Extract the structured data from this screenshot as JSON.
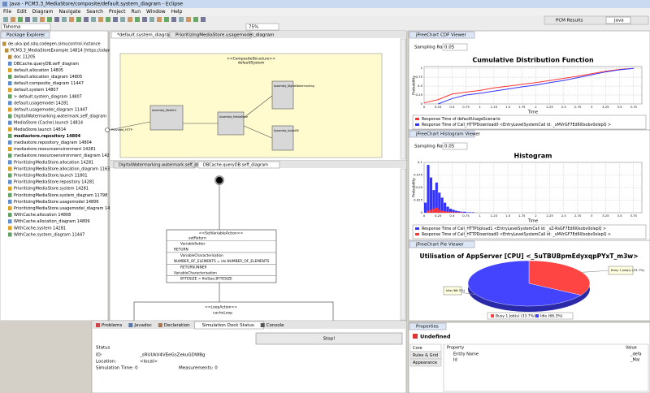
{
  "window": {
    "title": "Java - PCM3.3_MediaStore/composite/default.system_diagram - Eclipse"
  },
  "menu": [
    "File",
    "Edit",
    "Diagram",
    "Navigate",
    "Search",
    "Project",
    "Run",
    "Window",
    "Help"
  ],
  "toolbar": {
    "font": "Tahoma",
    "zoom": "75%",
    "perspectives": [
      "PCM Results",
      "Java"
    ]
  },
  "package_explorer": {
    "title": "Package Explorer",
    "items": [
      "de.uka.ipd.sdq.codegen.simucontrol.instance",
      "PCM3.3_MediaStoreExample 14814 [https://sdqweb",
      "doc 11205",
      "DBCache.queryDB.seff_diagram",
      "default.allocation 14805",
      "default.allocation_diagram 14805",
      "default.composite_diagram 11447",
      "default.system 14807",
      "> default.system_diagram 14807",
      "default.usagemodel 14281",
      "default.usagemodel_diagram 11447",
      "DigitalWatermarking.watermark.seff_diagram",
      "MediaStore (Cache).launch 14814",
      "MediaStore.launch 14814",
      "mediastore.repository 14804",
      "mediastore.repository_diagram 14804",
      "mediastore.resourceenvironment 14281",
      "mediastore.resourceenvironment_diagram 14281",
      "PrioritizingMediaStore.allocation 14281",
      "PrioritizingMediaStore.allocation_diagram 11635",
      "PrioritizingMediaStore.launch 11801",
      "PrioritizingMediaStore.repository 14281",
      "PrioritizingMediaStore.system 14281",
      "PrioritizingMediaStore.system_diagram 11798",
      "PrioritizingMediaStore.usagemodel 14806",
      "PrioritizingMediaStore.usagemodel_diagram 14806",
      "WithCache.allocation 14808",
      "WithCache.allocation_diagram 14809",
      "WithCache.system 14281",
      "WithCache.system_diagram 11447"
    ]
  },
  "editor_tabs": [
    "*default.system_diagram",
    "PrioritizingMediaStore.usagemodel_diagram"
  ],
  "system_diagram": {
    "stereotype": "<<CompositeStructure>>",
    "name": "defaultSystem",
    "provided": "Provided_HTTP",
    "components": [
      "Assembly_WebGUI",
      "Assembly_MediaStore",
      "Assembly_DigitalWatermarking",
      "Assembly_AudioDB"
    ]
  },
  "lower_editor_tabs": [
    "DigitalWatermarking.watermark.seff_diagram",
    "DBCache.queryDB.seff_diagram"
  ],
  "seff": {
    "stereotype": "<<SetVariableAction>>",
    "name": "setReturn",
    "rows": [
      "VariableSetter",
      "RETURN",
      "VariableCharacterisation",
      "NUMBER_OF_ELEMENTS = ids.NUMBER_OF_ELEMENTS",
      "RETURN.INNER",
      "VariableCharacterisation",
      "BYTESIZE = fileSize.BYTESIZE"
    ],
    "loop_stereotype": "<<LoopAction>>",
    "loop_name": "cacheLoop"
  },
  "bottom_tabs": [
    "Problems",
    "Javadoc",
    "Declaration",
    "Simulation Dock Status",
    "Console"
  ],
  "sim_status": {
    "stop": "Stop!",
    "status": "Status",
    "id_label": "ID:",
    "id": "_sRUUkV4VEeGsZekuGDWBg",
    "location_label": "Location:",
    "location": "<local>",
    "time": "Simulation Time: 0",
    "measurements": "Measurements: 0"
  },
  "viewers": [
    {
      "title": "jFreeChart CDF Viewer",
      "sampling_label": "Sampling Rate",
      "sampling": "0.05",
      "chart": {
        "type": "line",
        "title": "Cumulative Distribution Function",
        "x_label": "Time",
        "y_label": "Probability",
        "xlim": [
          0,
          3.9
        ],
        "xticks": [
          0,
          0.25,
          0.5,
          0.75,
          1,
          1.25,
          1.5,
          1.75,
          2,
          2.25,
          2.5,
          2.75,
          3,
          3.25,
          3.5,
          3.75
        ],
        "ylim": [
          0,
          1.05
        ],
        "yticks": [
          0,
          0.25,
          0.5,
          0.75,
          1
        ],
        "grid": true,
        "series": [
          {
            "name": "Response Time of defaultUsageScenario",
            "color": "#ff3333",
            "x": [
              0,
              0.25,
              0.5,
              0.75,
              1,
              1.25,
              1.5,
              1.75,
              2,
              2.25,
              2.5,
              2.75,
              3,
              3.25,
              3.5,
              3.75
            ],
            "values": [
              0.03,
              0.12,
              0.28,
              0.33,
              0.38,
              0.45,
              0.5,
              0.55,
              0.6,
              0.66,
              0.72,
              0.78,
              0.85,
              0.92,
              0.97,
              1
            ]
          },
          {
            "name": "Response Time of Call_HTTPDownload0 <EntryLevelSystemCall id: _xMVrGF7Ed6l0sobv0olepQ >",
            "color": "#3333ff",
            "x": [
              0.25,
              0.5,
              0.75,
              1,
              1.25,
              1.5,
              1.75,
              2,
              2.25,
              2.5,
              2.75,
              3,
              3.25,
              3.5,
              3.75
            ],
            "values": [
              0,
              0.15,
              0.25,
              0.3,
              0.36,
              0.42,
              0.48,
              0.53,
              0.6,
              0.66,
              0.74,
              0.82,
              0.9,
              0.96,
              1
            ]
          }
        ]
      }
    },
    {
      "title": "jFreeChart Histogram Viewer",
      "sampling_label": "Sampling Rate",
      "sampling": "0.05",
      "chart": {
        "type": "histogram",
        "title": "Histogram",
        "x_label": "Time",
        "y_label": "Probability",
        "xlim": [
          0,
          3.9
        ],
        "xticks": [
          0,
          0.25,
          0.5,
          0.75,
          1,
          1.25,
          1.5,
          1.75,
          2,
          2.25,
          2.5,
          2.75,
          3,
          3.25,
          3.5,
          3.75
        ],
        "ylim": [
          0,
          0.1
        ],
        "yticks": [
          0,
          0.025,
          0.05,
          0.075,
          0.1
        ],
        "grid": true,
        "bins": [
          0,
          0.05,
          0.1,
          0.15,
          0.2,
          0.25,
          0.3,
          0.35,
          0.4,
          0.45,
          0.5,
          0.55,
          0.6,
          0.65,
          0.7,
          0.75,
          0.8,
          0.85,
          0.9,
          0.95,
          1
        ],
        "series": [
          {
            "name": "Response Time of Call_HTTPUpload1 <EntryLevelSystemCall id: _sZ-RsGF7Ed6l0sobv0olepQ >",
            "color": "#3333ff",
            "values": [
              0.02,
              0.095,
              0.07,
              0.045,
              0.06,
              0.04,
              0.03,
              0.02,
              0.012,
              0.008,
              0.006,
              0.004,
              0.003,
              0.002,
              0.002,
              0.001,
              0.001,
              0.001,
              0,
              0
            ]
          },
          {
            "name": "Response Time of Call_HTTPDownload0 <EntryLevelSystemCall id: _xMVrGF7Ed6l0sobv0olepQ >",
            "color": "#ff3333",
            "values": [
              0,
              0.004,
              0.006,
              0.008,
              0.01,
              0.006,
              0.004,
              0.003,
              0.002,
              0.002,
              0.001,
              0.001,
              0.001,
              0.001,
              0,
              0,
              0,
              0,
              0,
              0
            ]
          }
        ]
      }
    },
    {
      "title": "jFreeChart Pie Viewer",
      "chart": {
        "type": "pie",
        "title": "Utilisation of AppServer [CPU] <_5uTBUBpmEdyxqpPYxT_m3w>",
        "categories": [
          "Busy 1 Job(s)",
          "Idle"
        ],
        "values": [
          33.7,
          66.3
        ],
        "value_labels": [
          "Busy 1 Job(s) (33.7%)",
          "Idle (66.3%)"
        ],
        "colors": [
          "#ff4444",
          "#4444ff"
        ]
      }
    }
  ],
  "properties": {
    "title": "Properties",
    "element": "Undefined",
    "tabs": [
      "Core",
      "Rules & Grid",
      "Appearance"
    ],
    "columns": [
      "Property",
      "Value"
    ],
    "rows": [
      [
        "Entity Name",
        "_defa"
      ],
      [
        "Id",
        "_Mal"
      ]
    ]
  }
}
